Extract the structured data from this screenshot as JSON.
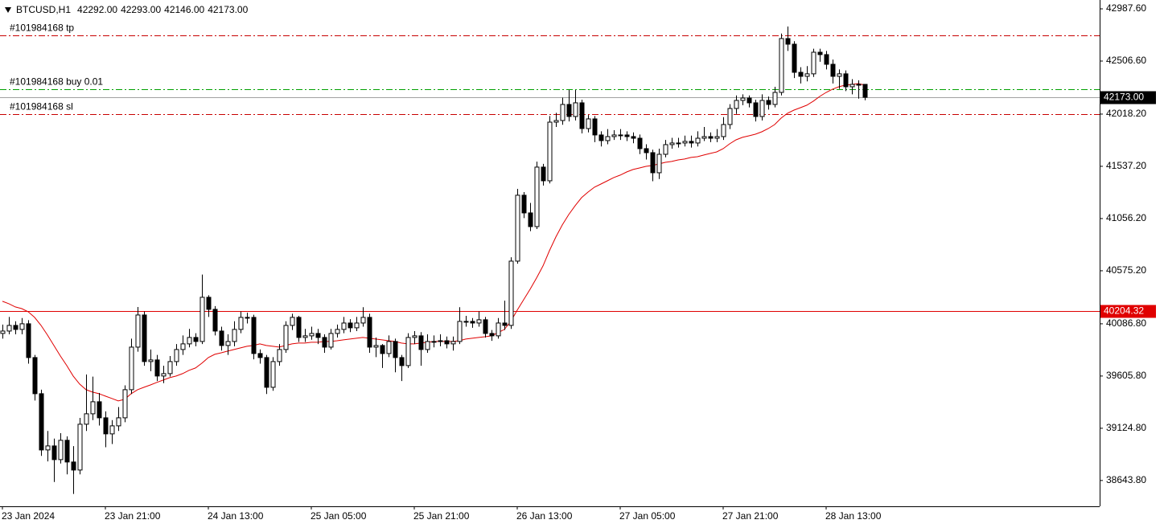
{
  "chart_data": {
    "type": "candlestick",
    "header": {
      "symbol": "BTCUSD,H1",
      "ohlc": [
        "42292.00",
        "42293.00",
        "42146.00",
        "42173.00"
      ]
    },
    "categories": [
      "23 Jan 2024",
      null,
      null,
      null,
      null,
      null,
      null,
      null,
      null,
      null,
      null,
      null,
      null,
      null,
      null,
      null,
      "23 Jan 21:00",
      null,
      null,
      null,
      null,
      null,
      null,
      null,
      null,
      null,
      null,
      null,
      null,
      null,
      null,
      null,
      "24 Jan 13:00",
      null,
      null,
      null,
      null,
      null,
      null,
      null,
      null,
      null,
      null,
      null,
      null,
      null,
      null,
      null,
      "25 Jan 05:00",
      null,
      null,
      null,
      null,
      null,
      null,
      null,
      null,
      null,
      null,
      null,
      null,
      null,
      null,
      null,
      "25 Jan 21:00",
      null,
      null,
      null,
      null,
      null,
      null,
      null,
      null,
      null,
      null,
      null,
      null,
      null,
      null,
      null,
      "26 Jan 13:00",
      null,
      null,
      null,
      null,
      null,
      null,
      null,
      null,
      null,
      null,
      null,
      null,
      null,
      null,
      null,
      "27 Jan 05:00",
      null,
      null,
      null,
      null,
      null,
      null,
      null,
      null,
      null,
      null,
      null,
      null,
      null,
      null,
      null,
      "27 Jan 21:00",
      null,
      null,
      null,
      null,
      null,
      null,
      null,
      null,
      null,
      null,
      null,
      null,
      null,
      null,
      null,
      "28 Jan 13:00",
      null,
      null,
      null,
      null,
      null,
      null
    ],
    "open": [
      39998,
      40020,
      40072,
      40035,
      40087,
      39776,
      39443,
      38925,
      38962,
      38836,
      39014,
      38814,
      38740,
      39162,
      39258,
      39369,
      39221,
      39073,
      39147,
      39221,
      39480,
      39872,
      40168,
      39739,
      39754,
      39606,
      39628,
      39739,
      39850,
      39902,
      39961,
      39924,
      40331,
      40220,
      40020,
      39887,
      39924,
      40035,
      40146,
      40146,
      39813,
      39776,
      39502,
      39739,
      39850,
      40072,
      40146,
      39961,
      39976,
      39998,
      39961,
      39872,
      39998,
      40035,
      40094,
      40050,
      40094,
      40146,
      39872,
      39887,
      39813,
      39924,
      39776,
      39702,
      39961,
      39976,
      39850,
      39924,
      39924,
      39931,
      39902,
      39924,
      40109,
      40109,
      40094,
      40124,
      39998,
      39976,
      40094,
      40072,
      40664,
      41271,
      41108,
      40982,
      41530,
      41404,
      41944,
      41959,
      42107,
      41996,
      42122,
      41885,
      41974,
      41826,
      41774,
      41811,
      41826,
      41826,
      41811,
      41796,
      41700,
      41663,
      41478,
      41648,
      41737,
      41752,
      41752,
      41767,
      41752,
      41796,
      41811,
      41796,
      41811,
      41922,
      42070,
      42144,
      42166,
      42122,
      41996,
      42144,
      42107,
      42218,
      42714,
      42662,
      42403,
      42366,
      42389,
      42588,
      42566,
      42477,
      42366,
      42389,
      42270,
      42292,
      42292
    ],
    "high": [
      40080,
      40150,
      40110,
      40140,
      40120,
      39800,
      39480,
      39100,
      39030,
      39080,
      39050,
      38960,
      39220,
      39620,
      39600,
      39450,
      39280,
      39200,
      39320,
      39520,
      39950,
      40242,
      40200,
      39850,
      39800,
      39700,
      39790,
      39900,
      39980,
      40040,
      40000,
      40540,
      40350,
      40250,
      40060,
      39990,
      40110,
      40200,
      40190,
      40170,
      39850,
      39800,
      39780,
      39900,
      40110,
      40180,
      40160,
      40040,
      40060,
      40040,
      39990,
      40040,
      40080,
      40150,
      40130,
      40150,
      40240,
      40180,
      39960,
      39900,
      39980,
      39950,
      39800,
      40000,
      40020,
      40010,
      39990,
      39980,
      39990,
      39970,
      39970,
      40240,
      40160,
      40140,
      40200,
      40150,
      40030,
      40140,
      40300,
      40700,
      41330,
      41300,
      41200,
      41580,
      41560,
      42000,
      42030,
      42170,
      42240,
      42240,
      42150,
      42010,
      42000,
      41860,
      41880,
      41870,
      41880,
      41860,
      41850,
      41830,
      41740,
      41690,
      41700,
      41780,
      41800,
      41800,
      41820,
      41820,
      41860,
      41900,
      41850,
      41880,
      41990,
      42110,
      42190,
      42200,
      42190,
      42150,
      42200,
      42180,
      42270,
      42760,
      42825,
      42690,
      42450,
      42460,
      42620,
      42620,
      42600,
      42520,
      42430,
      42420,
      42340,
      42330,
      42293
    ],
    "low": [
      39950,
      39990,
      39990,
      39990,
      39720,
      39380,
      38870,
      38820,
      38630,
      38800,
      38700,
      38520,
      38700,
      39100,
      39200,
      39150,
      38950,
      38980,
      39100,
      39180,
      39440,
      39830,
      39700,
      39650,
      39560,
      39540,
      39600,
      39700,
      39800,
      39870,
      39880,
      39900,
      40150,
      39980,
      39840,
      39800,
      39880,
      40000,
      40090,
      39760,
      39720,
      39440,
      39470,
      39700,
      39820,
      40030,
      39920,
      39920,
      39940,
      39900,
      39820,
      39850,
      39960,
      40000,
      40010,
      40020,
      40060,
      39820,
      39780,
      39680,
      39780,
      39640,
      39560,
      39680,
      39900,
      39700,
      39820,
      39870,
      39880,
      39860,
      39840,
      39900,
      40060,
      40050,
      40060,
      39960,
      39930,
      39950,
      40030,
      40040,
      40640,
      41060,
      40940,
      40960,
      41360,
      41380,
      41900,
      41920,
      41950,
      41960,
      41840,
      41850,
      41760,
      41720,
      41740,
      41780,
      41780,
      41770,
      41750,
      41650,
      41600,
      41400,
      41420,
      41620,
      41700,
      41710,
      41720,
      41710,
      41720,
      41770,
      41760,
      41760,
      41780,
      41880,
      42020,
      42100,
      42080,
      41950,
      41960,
      42060,
      42080,
      42190,
      42600,
      42350,
      42300,
      42320,
      42360,
      42500,
      42430,
      42300,
      42250,
      42230,
      42200,
      42160,
      42146
    ],
    "close": [
      40020,
      40072,
      40035,
      40087,
      39776,
      39443,
      38925,
      38962,
      38836,
      39014,
      38814,
      38740,
      39162,
      39258,
      39369,
      39221,
      39073,
      39147,
      39221,
      39480,
      39872,
      40168,
      39739,
      39754,
      39606,
      39628,
      39739,
      39850,
      39902,
      39961,
      39924,
      40331,
      40220,
      40020,
      39887,
      39924,
      40035,
      40146,
      40146,
      39813,
      39776,
      39502,
      39739,
      39850,
      40072,
      40146,
      39961,
      39976,
      39998,
      39961,
      39872,
      39998,
      40035,
      40094,
      40050,
      40094,
      40146,
      39872,
      39887,
      39813,
      39924,
      39776,
      39702,
      39961,
      39976,
      39850,
      39924,
      39924,
      39931,
      39902,
      39924,
      40109,
      40109,
      40094,
      40124,
      39998,
      39976,
      40094,
      40072,
      40664,
      41271,
      41108,
      40982,
      41530,
      41404,
      41944,
      41959,
      42107,
      41996,
      42122,
      41885,
      41974,
      41826,
      41774,
      41811,
      41826,
      41826,
      41811,
      41796,
      41700,
      41663,
      41478,
      41648,
      41737,
      41752,
      41752,
      41767,
      41752,
      41796,
      41811,
      41796,
      41811,
      41922,
      42070,
      42144,
      42166,
      42122,
      41996,
      42144,
      42107,
      42218,
      42714,
      42662,
      42403,
      42366,
      42389,
      42588,
      42566,
      42477,
      42366,
      42389,
      42270,
      42292,
      42292,
      42173
    ],
    "bull_color": "#ffffff",
    "bear_color": "#000000",
    "indicator": {
      "color": "#e00000",
      "values": [
        40294,
        40272,
        40242,
        40227,
        40198,
        40146,
        40072,
        39983,
        39887,
        39791,
        39702,
        39606,
        39532,
        39480,
        39458,
        39443,
        39421,
        39399,
        39376,
        39391,
        39443,
        39480,
        39502,
        39524,
        39547,
        39569,
        39591,
        39606,
        39628,
        39658,
        39680,
        39724,
        39776,
        39806,
        39820,
        39835,
        39850,
        39865,
        39880,
        39887,
        39902,
        39887,
        39880,
        39872,
        39887,
        39902,
        39909,
        39909,
        39917,
        39917,
        39924,
        39924,
        39931,
        39939,
        39946,
        39954,
        39961,
        39954,
        39946,
        39939,
        39931,
        39924,
        39909,
        39902,
        39902,
        39909,
        39917,
        39924,
        39924,
        39924,
        39924,
        39931,
        39946,
        39954,
        39961,
        39968,
        39976,
        40005,
        40035,
        40109,
        40213,
        40309,
        40405,
        40509,
        40620,
        40760,
        40886,
        40997,
        41093,
        41175,
        41249,
        41300,
        41345,
        41374,
        41404,
        41434,
        41456,
        41485,
        41508,
        41522,
        41537,
        41545,
        41559,
        41574,
        41582,
        41596,
        41604,
        41619,
        41626,
        41641,
        41656,
        41670,
        41700,
        41744,
        41781,
        41804,
        41818,
        41833,
        41855,
        41885,
        41922,
        41981,
        42026,
        42055,
        42077,
        42100,
        42137,
        42181,
        42218,
        42248,
        42270,
        42285,
        42292,
        42299,
        42285
      ]
    },
    "ylim": [
      38406,
      43069
    ],
    "yticks": [
      {
        "value": 42987.6,
        "label": "42987.60"
      },
      {
        "value": 42506.6,
        "label": "42506.60"
      },
      {
        "value": 42018.2,
        "label": "42018.20"
      },
      {
        "value": 41537.2,
        "label": "41537.20"
      },
      {
        "value": 41056.2,
        "label": "41056.20"
      },
      {
        "value": 40575.2,
        "label": "40575.20"
      },
      {
        "value": 40086.8,
        "label": "40086.80"
      },
      {
        "value": 39605.8,
        "label": "39605.80"
      },
      {
        "value": 39124.8,
        "label": "39124.80"
      },
      {
        "value": 38643.8,
        "label": "38643.80"
      }
    ],
    "levels": [
      {
        "label": "#101984168 tp",
        "value": 42743,
        "color": "#c80000"
      },
      {
        "label": "#101984168 buy 0.01",
        "value": 42248,
        "color": "#00a000"
      },
      {
        "label": "#101984168 sl",
        "value": 42018,
        "color": "#c80000"
      }
    ],
    "price_line": {
      "value": 42173,
      "label": "42173.00",
      "color": "#a0a0a0"
    },
    "alert_line": {
      "value": 40204.32,
      "label": "40204.32",
      "color": "#e00000"
    }
  }
}
